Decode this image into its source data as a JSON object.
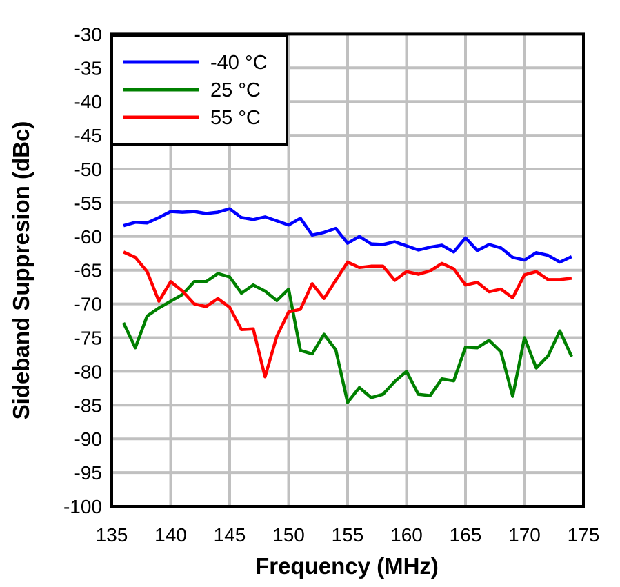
{
  "chart_data": {
    "type": "line",
    "title": "",
    "xlabel": "Frequency (MHz)",
    "ylabel": "Sideband Suppresion (dBc)",
    "xlim": [
      135,
      175
    ],
    "ylim": [
      -100,
      -30
    ],
    "xticks": [
      135,
      140,
      145,
      150,
      155,
      160,
      165,
      170,
      175
    ],
    "yticks": [
      -30,
      -35,
      -40,
      -45,
      -50,
      -55,
      -60,
      -65,
      -70,
      -75,
      -80,
      -85,
      -90,
      -95,
      -100
    ],
    "grid": true,
    "legend_position": "upper left",
    "x": [
      136,
      137,
      138,
      139,
      140,
      141,
      142,
      143,
      144,
      145,
      146,
      147,
      148,
      149,
      150,
      151,
      152,
      153,
      154,
      155,
      156,
      157,
      158,
      159,
      160,
      161,
      162,
      163,
      164,
      165,
      166,
      167,
      168,
      169,
      170,
      171,
      172,
      173,
      174
    ],
    "series": [
      {
        "name": "-40 °C",
        "color": "#0000ff",
        "values": [
          -58.4,
          -57.9,
          -58.0,
          -57.2,
          -56.3,
          -56.4,
          -56.3,
          -56.6,
          -56.4,
          -55.9,
          -57.2,
          -57.5,
          -57.1,
          -57.7,
          -58.3,
          -57.3,
          -59.8,
          -59.4,
          -58.8,
          -61.0,
          -60.0,
          -61.1,
          -61.2,
          -60.8,
          -61.4,
          -62.0,
          -61.6,
          -61.3,
          -62.3,
          -60.2,
          -62.1,
          -61.2,
          -61.7,
          -63.1,
          -63.5,
          -62.4,
          -62.8,
          -63.8,
          -63.0
        ]
      },
      {
        "name": "25 °C",
        "color": "#008000",
        "values": [
          -72.8,
          -76.5,
          -71.8,
          -70.6,
          -69.6,
          -68.6,
          -66.7,
          -66.7,
          -65.5,
          -66.0,
          -68.4,
          -67.2,
          -68.1,
          -69.5,
          -67.8,
          -76.9,
          -77.4,
          -74.5,
          -76.8,
          -84.6,
          -82.4,
          -83.9,
          -83.4,
          -81.5,
          -80.0,
          -83.4,
          -83.6,
          -81.1,
          -81.4,
          -76.4,
          -76.5,
          -75.4,
          -77.1,
          -83.7,
          -75.0,
          -79.5,
          -77.7,
          -74.0,
          -77.8
        ]
      },
      {
        "name": "55 °C",
        "color": "#ff0000",
        "values": [
          -62.3,
          -63.1,
          -65.2,
          -69.6,
          -66.7,
          -68.1,
          -70.0,
          -70.4,
          -69.2,
          -70.5,
          -73.8,
          -73.7,
          -80.8,
          -74.8,
          -71.2,
          -70.8,
          -67.0,
          -69.2,
          -66.5,
          -63.8,
          -64.6,
          -64.4,
          -64.4,
          -66.5,
          -65.2,
          -65.6,
          -65.1,
          -64.0,
          -64.8,
          -67.2,
          -66.8,
          -68.2,
          -67.8,
          -69.1,
          -65.7,
          -65.2,
          -66.4,
          -66.4,
          -66.2
        ]
      }
    ]
  },
  "legend": {
    "items": [
      {
        "label": "-40 °C",
        "color": "#0000ff"
      },
      {
        "label": "25 °C",
        "color": "#008000"
      },
      {
        "label": "55 °C",
        "color": "#ff0000"
      }
    ]
  },
  "style": {
    "grid_color": "#c0c0c0",
    "axis_color": "#000000"
  }
}
